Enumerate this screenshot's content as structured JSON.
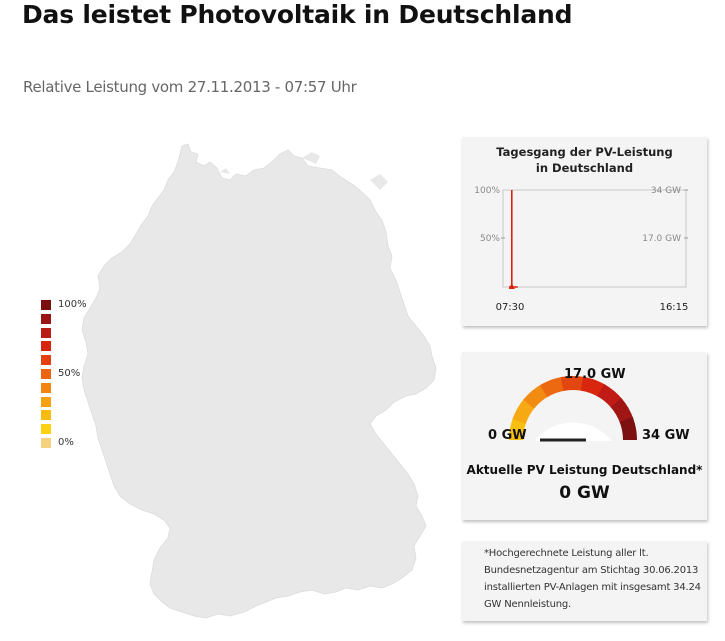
{
  "header": {
    "title": "Das leistet Photovoltaik in Deutschland",
    "subtitle": "Relative Leistung vom 27.11.2013 - 07:57 Uhr"
  },
  "legend": {
    "labels": {
      "max": "100%",
      "mid": "50%",
      "min": "0%"
    },
    "colors": [
      "#7a0e0e",
      "#9a1414",
      "#b81c15",
      "#d8230f",
      "#e4400f",
      "#ec6411",
      "#f38411",
      "#f6a012",
      "#f8bb10",
      "#fbd110",
      "#f5d27e"
    ]
  },
  "chart_data": {
    "type": "line",
    "title": "Tagesgang der PV-Leistung in Deutschland",
    "title_line1": "Tagesgang der PV-Leistung",
    "title_line2": "in Deutschland",
    "x_ticks": [
      "07:30",
      "16:15"
    ],
    "y_left_ticks": [
      "100%",
      "50%"
    ],
    "y_right_ticks": [
      "34 GW",
      "17.0 GW"
    ],
    "ylim_gw": [
      0,
      34
    ],
    "series": [
      {
        "x": [
          "07:30",
          "07:57"
        ],
        "y": [
          0,
          0
        ]
      }
    ],
    "marker_time": "07:57",
    "line_color": "#d8230f"
  },
  "gauge": {
    "min_label": "0 GW",
    "mid_label": "17.0 GW",
    "max_label": "34 GW",
    "min": 0,
    "max": 34,
    "value": 0,
    "caption": "Aktuelle PV Leistung Deutschland*",
    "value_label": "0 GW",
    "segment_colors": [
      "#f8bf10",
      "#f6a912",
      "#f28b12",
      "#ec6811",
      "#e4460f",
      "#d8260f",
      "#c01c15",
      "#a01614",
      "#7d1010"
    ]
  },
  "note": {
    "text": "*Hochgerechnete Leistung aller lt. Bundesnetzagentur am Stichtag 30.06.2013 installierten PV-Anlagen mit insgesamt 34.24 GW Nennleistung."
  },
  "colors": {
    "map_fill": "#e8e8e8",
    "card_bg": "#f4f4f4"
  }
}
